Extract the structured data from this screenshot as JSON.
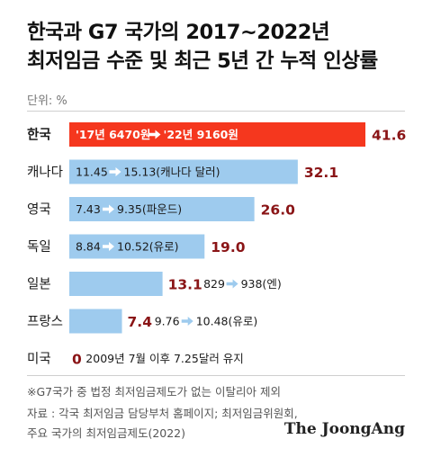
{
  "title": {
    "line1": "한국과 G7 국가의 2017~2022년",
    "line2": "최저임금 수준 및 최근 5년 간 누적 인상률"
  },
  "unit_label": "단위: %",
  "footnote": "※G7국가 중 법정 최저임금제도가 없는 이탈리아 제외",
  "source": {
    "line1": "자료 : 각국 최저임금 담당부처 홈페이지; 최저임금위원회,",
    "line2": "주요 국가의 최저임금제도(2022)"
  },
  "logo_text": "The JoongAng",
  "colors": {
    "highlight_bar": "#f5371e",
    "bar": "#9ecbee",
    "value_text": "#8a1416",
    "white": "#ffffff",
    "arrow_on_blue": "#ffffff",
    "arrow_on_red": "#ffffff"
  },
  "chart_data": {
    "type": "bar",
    "orientation": "horizontal",
    "categories": [
      "한국",
      "캐나다",
      "영국",
      "독일",
      "일본",
      "프랑스",
      "미국"
    ],
    "values": [
      41.6,
      32.1,
      26.0,
      19.0,
      13.1,
      7.4,
      0
    ],
    "value_labels": [
      "41.6",
      "32.1",
      "26.0",
      "19.0",
      "13.1",
      "7.4",
      "0"
    ],
    "annotations": [
      {
        "from": "'17년 6470원",
        "to": "'22년 9160원"
      },
      {
        "from": "11.45",
        "to": "15.13(캐나다 달러)"
      },
      {
        "from": "7.43",
        "to": "9.35(파운드)"
      },
      {
        "from": "8.84",
        "to": "10.52(유로)"
      },
      {
        "from": "829",
        "to": "938(엔)"
      },
      {
        "from": "9.76",
        "to": "10.48(유로)"
      },
      {
        "from": "2009년 7월 이후 7.25달러 유지",
        "to": ""
      }
    ],
    "highlight_index": 0,
    "xlim": [
      0,
      41.6
    ],
    "grid": false,
    "legend": "none",
    "xlabel": "",
    "ylabel": ""
  }
}
